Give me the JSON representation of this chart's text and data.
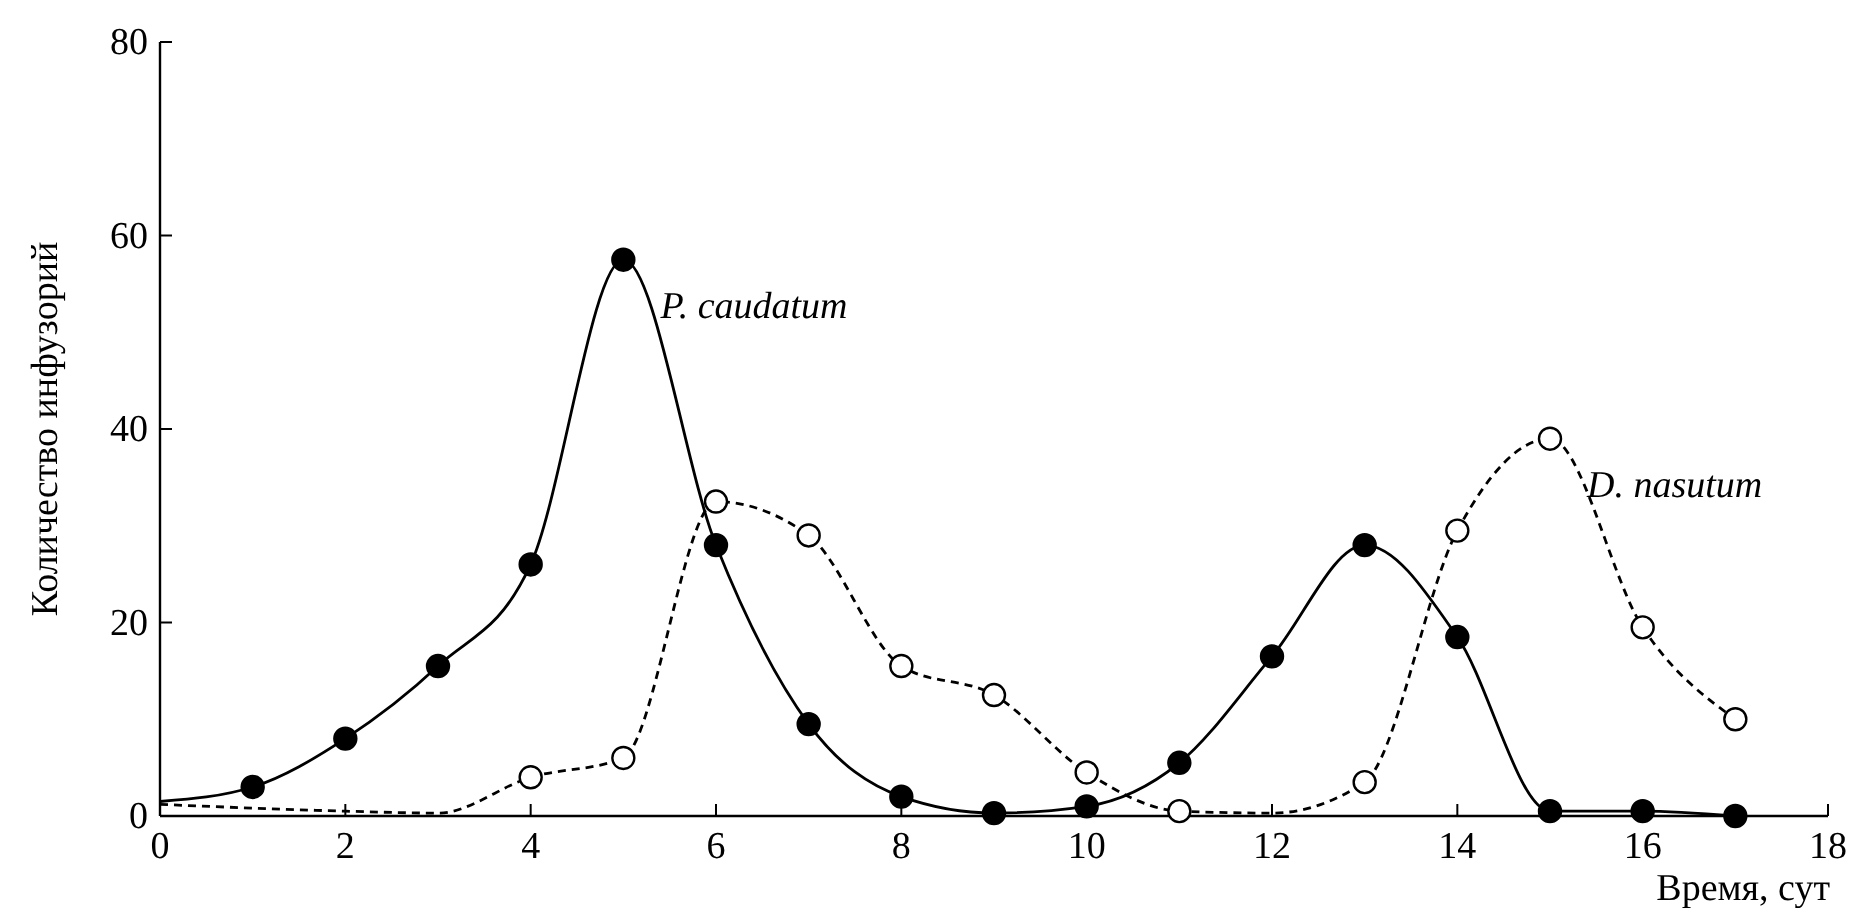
{
  "chart_data": {
    "type": "line",
    "xlabel": "Время, сут",
    "ylabel": "Количество инфузорий",
    "xlim": [
      0,
      18
    ],
    "ylim": [
      0,
      80
    ],
    "xticks": [
      0,
      2,
      4,
      6,
      8,
      10,
      12,
      14,
      16,
      18
    ],
    "yticks": [
      0,
      20,
      40,
      60,
      80
    ],
    "grid": false,
    "series": [
      {
        "name": "P. caudatum",
        "color": "#000000",
        "line_style": "solid",
        "marker": "none",
        "x": [
          0,
          1,
          2,
          3,
          4,
          5,
          6,
          7,
          8,
          9,
          10,
          11,
          12,
          13,
          14,
          15,
          16,
          17
        ],
        "values": [
          1.5,
          3,
          8,
          15.5,
          26,
          57.5,
          28,
          9.5,
          2,
          0.3,
          1,
          5.5,
          16.5,
          28,
          18.5,
          0.5,
          0.5,
          0
        ]
      },
      {
        "name": "D. nasutum",
        "color": "#000000",
        "line_style": "dashed",
        "marker": "none",
        "x": [
          0,
          2,
          3,
          4,
          5,
          6,
          7,
          8,
          9,
          10,
          11,
          12,
          13,
          14,
          15,
          16,
          17
        ],
        "values": [
          1.2,
          0.5,
          0.3,
          4,
          6,
          32.5,
          29,
          15.5,
          12.5,
          4.5,
          0.5,
          0.3,
          3.5,
          29.5,
          39,
          19.5,
          10
        ]
      },
      {
        "type": "scatter",
        "color": "#000000",
        "marker": "circle",
        "x": [
          1,
          2,
          3,
          4,
          5,
          6,
          7,
          8,
          9,
          10,
          11,
          12,
          13,
          14,
          15,
          16,
          17
        ],
        "values": [
          3,
          8,
          15.5,
          26,
          57.5,
          28,
          9.5,
          2,
          0.3,
          1,
          5.5,
          16.5,
          28,
          18.5,
          0.5,
          0.5,
          0
        ]
      },
      {
        "type": "scatter",
        "color": "#ffffff",
        "marker": "circle",
        "x": [
          4,
          5,
          6,
          7,
          8,
          9,
          10,
          11,
          13,
          14,
          15,
          16,
          17
        ],
        "values": [
          4,
          6,
          32.5,
          29,
          15.5,
          12.5,
          4.5,
          0.5,
          3.5,
          29.5,
          39,
          19.5,
          10
        ]
      }
    ]
  }
}
